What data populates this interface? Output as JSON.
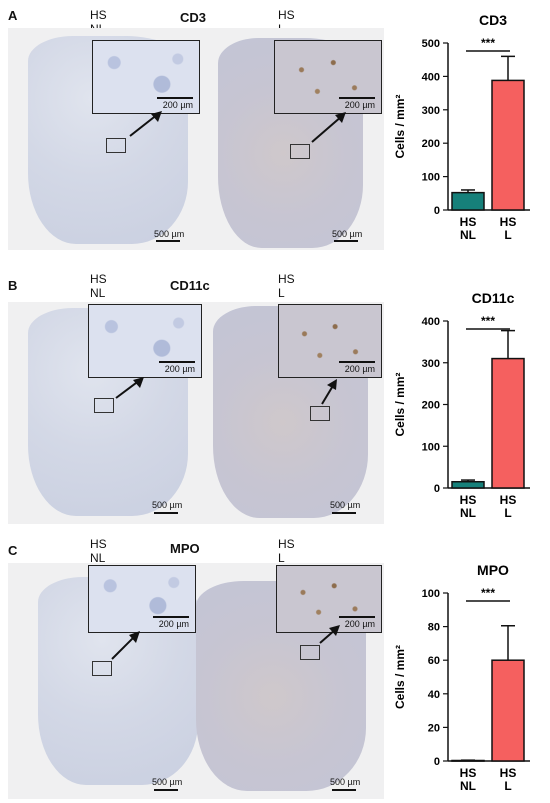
{
  "panels": [
    {
      "label": "A",
      "stain": "CD3",
      "nl_condition": "HS\nNL",
      "l_condition": "HS\nL",
      "inset_scale": "200 µm",
      "inset_scale_l": "200 µm",
      "scale_nl": "500 µm",
      "scale_l": "500 µm"
    },
    {
      "label": "B",
      "stain": "CD11c",
      "nl_condition": "HS\nNL",
      "l_condition": "HS\nL",
      "inset_scale": "200 µm",
      "inset_scale_l": "200 µm",
      "scale_nl": "500 µm",
      "scale_l": "500 µm"
    },
    {
      "label": "C",
      "stain": "MPO",
      "nl_condition": "HS\nNL",
      "l_condition": "HS\nL",
      "inset_scale": "200 µm",
      "inset_scale_l": "200 µm",
      "scale_nl": "500 µm",
      "scale_l": "500 µm"
    }
  ],
  "colors": {
    "nl": "#16807a",
    "l": "#f5605f"
  },
  "chart_data": [
    {
      "type": "bar",
      "title": "CD3",
      "ylabel": "Cells / mm²",
      "categories": [
        "HS\nNL",
        "HS\nL"
      ],
      "values": [
        52,
        388
      ],
      "errors": [
        8,
        72
      ],
      "ylim": [
        0,
        500
      ],
      "yticks": [
        0,
        100,
        200,
        300,
        400,
        500
      ],
      "significance": "***"
    },
    {
      "type": "bar",
      "title": "CD11c",
      "ylabel": "Cells / mm²",
      "categories": [
        "HS\nNL",
        "HS\nL"
      ],
      "values": [
        15,
        310
      ],
      "errors": [
        4,
        67
      ],
      "ylim": [
        0,
        400
      ],
      "yticks": [
        0,
        100,
        200,
        300,
        400
      ],
      "significance": "***"
    },
    {
      "type": "bar",
      "title": "MPO",
      "ylabel": "Cells / mm²",
      "categories": [
        "HS\nNL",
        "HS\nL"
      ],
      "values": [
        0.3,
        60
      ],
      "errors": [
        0.2,
        20.5
      ],
      "ylim": [
        0,
        100
      ],
      "yticks": [
        0,
        20,
        40,
        60,
        80,
        100
      ],
      "significance": "***"
    }
  ]
}
